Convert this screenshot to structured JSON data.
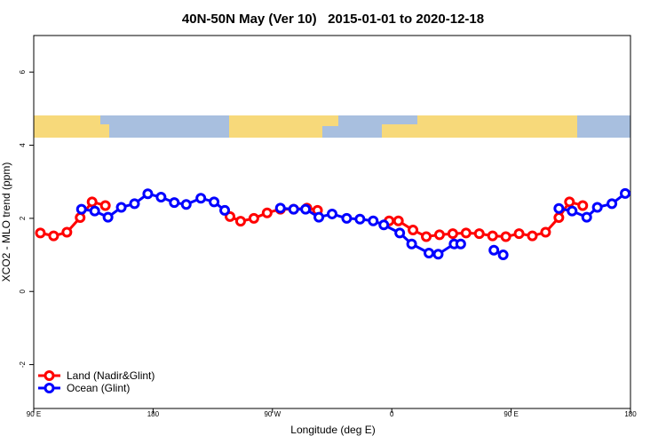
{
  "chart_data": {
    "type": "line",
    "title": "40N-50N May (Ver 10)   2015-01-01 to 2020-12-18",
    "x_label": "Longitude (deg E)",
    "y_label": "XCO2 - MLO trend (ppm)",
    "xlim": [
      90,
      540
    ],
    "ylim": [
      -3.2,
      7
    ],
    "xticks": [
      {
        "value": 90,
        "label": "90 E"
      },
      180,
      {
        "value": 270,
        "label": "90 W"
      },
      {
        "value": 360,
        "label": "0"
      },
      {
        "value": 450,
        "label": "90 E"
      },
      {
        "value": 540,
        "label": "180"
      }
    ],
    "yticks": [
      -2,
      0,
      2,
      4,
      6
    ],
    "legend": "bottom-left",
    "series": [
      {
        "name": "Land (Nadir&Glint)",
        "color": "#ff0000",
        "x": [
          95,
          105,
          115,
          125,
          134,
          144,
          null,
          238,
          246,
          256,
          266,
          276,
          286,
          296,
          304,
          null,
          358,
          365,
          376,
          386,
          396,
          406,
          416,
          426,
          436,
          446,
          456,
          466,
          476,
          486,
          494,
          504
        ],
        "values": [
          1.6,
          1.52,
          1.62,
          2.02,
          2.45,
          2.35,
          null,
          2.05,
          1.92,
          2.0,
          2.15,
          2.25,
          2.25,
          2.28,
          2.22,
          null,
          1.93,
          1.93,
          1.68,
          1.5,
          1.55,
          1.58,
          1.6,
          1.58,
          1.52,
          1.5,
          1.58,
          1.52,
          1.62,
          2.02,
          2.45,
          2.35
        ]
      },
      {
        "name": "Ocean (Glint)",
        "color": "#0000ff",
        "x": [
          126,
          136,
          146,
          156,
          166,
          176,
          186,
          196,
          205,
          216,
          226,
          234,
          null,
          276,
          286,
          295,
          305,
          315,
          326,
          336,
          346,
          354,
          366,
          375,
          388,
          395,
          407,
          412,
          null,
          437,
          444,
          null,
          486,
          496,
          507,
          515,
          526,
          536
        ],
        "values": [
          2.25,
          2.2,
          2.03,
          2.3,
          2.4,
          2.67,
          2.58,
          2.43,
          2.38,
          2.55,
          2.45,
          2.22,
          null,
          2.28,
          2.25,
          2.25,
          2.03,
          2.12,
          2.0,
          1.98,
          1.93,
          1.82,
          1.6,
          1.3,
          1.05,
          1.02,
          1.3,
          1.3,
          null,
          1.13,
          1.0,
          null,
          2.27,
          2.2,
          2.03,
          2.3,
          2.4,
          2.68
        ]
      }
    ]
  }
}
